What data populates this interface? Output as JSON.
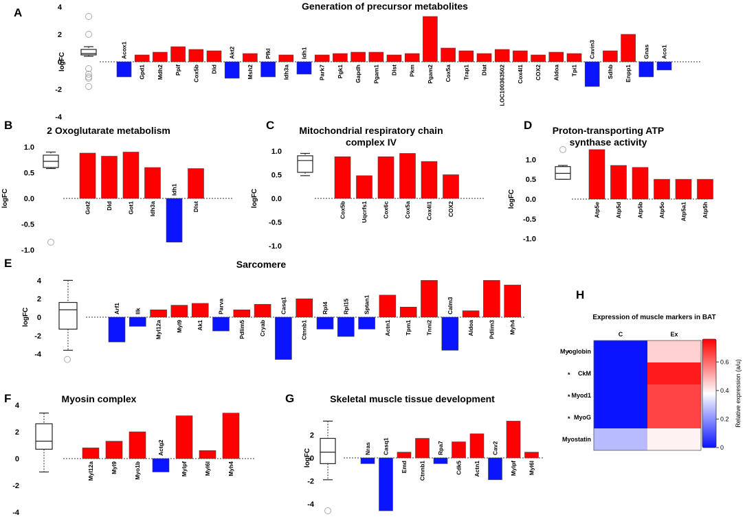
{
  "chart_data": [
    {
      "id": "A",
      "type": "bar",
      "letter": "A",
      "title": "Generation of precursor metabolites",
      "ylabel": "logFC",
      "ylim": [
        -4,
        4
      ],
      "yticks": [
        4,
        2,
        0,
        -2,
        -4
      ],
      "categories": [
        "Acox1",
        "Gpd1",
        "Mdh2",
        "Ppif",
        "Cox5b",
        "Dld",
        "Akt2",
        "Msh2",
        "Pfkl",
        "Idh3a",
        "Idh1",
        "Park7",
        "Pgk1",
        "Gapdh",
        "Pgam1",
        "Dlst",
        "Pkm",
        "Pgam2",
        "Cox5a",
        "Trap1",
        "Dlat",
        "LOC100363502",
        "Cox4l1",
        "COX2",
        "Aldoa",
        "Tpi1",
        "Cavin3",
        "Sdhb",
        "Enpp1",
        "Gnas",
        "Aco1"
      ],
      "values": [
        -1.1,
        0.5,
        0.7,
        1.1,
        0.9,
        0.8,
        -1.2,
        0.6,
        -1.1,
        0.5,
        -0.9,
        0.5,
        0.6,
        0.7,
        0.7,
        0.5,
        0.6,
        3.3,
        1.0,
        0.8,
        0.6,
        0.9,
        0.8,
        0.5,
        0.7,
        0.6,
        -1.8,
        0.8,
        2.0,
        -1.1,
        -0.6
      ],
      "box": {
        "min": 0.4,
        "q1": 0.5,
        "median": 0.6,
        "q3": 0.9,
        "max": 1.1,
        "outliers": [
          3.3,
          2.0,
          -0.5,
          -0.9,
          -1.1,
          -1.2,
          -1.8
        ]
      }
    },
    {
      "id": "B",
      "type": "bar",
      "letter": "B",
      "title": "2 Oxoglutarate metabolism",
      "ylabel": "logFC",
      "ylim": [
        -1,
        1
      ],
      "yticks": [
        "1.0",
        "0.5",
        "0.0",
        "-0.5",
        "-1.0"
      ],
      "categories": [
        "Got2",
        "Dld",
        "Got1",
        "Idh3a",
        "Idh1",
        "Dlst"
      ],
      "values": [
        0.88,
        0.82,
        0.9,
        0.6,
        -0.85,
        0.58
      ],
      "box": {
        "min": 0.58,
        "q1": 0.6,
        "median": 0.72,
        "q3": 0.84,
        "max": 0.9,
        "outliers": [
          -0.85
        ]
      }
    },
    {
      "id": "C",
      "type": "bar",
      "letter": "C",
      "title": "Mitochondrial respiratory chain complex IV",
      "title_lines": [
        "Mitochondrial respiratory chain",
        "complex IV"
      ],
      "ylabel": "logFC",
      "ylim": [
        -1,
        1
      ],
      "yticks": [
        "1.0",
        "0.5",
        "0.0",
        "-0.5",
        "-1.0"
      ],
      "categories": [
        "Cox5b",
        "Uqcrfs1",
        "Cox6c",
        "Cox5a",
        "Cox4l1",
        "COX2"
      ],
      "values": [
        0.88,
        0.48,
        0.88,
        0.95,
        0.78,
        0.5
      ],
      "box": {
        "min": 0.48,
        "q1": 0.55,
        "median": 0.8,
        "q3": 0.9,
        "max": 0.95,
        "outliers": []
      }
    },
    {
      "id": "D",
      "type": "bar",
      "letter": "D",
      "title": "Proton-transporting ATP synthase activity",
      "title_lines": [
        "Proton-transporting ATP",
        "synthase activity"
      ],
      "ylabel": "logFC",
      "ylim": [
        -1,
        1.3
      ],
      "yticks": [
        "1.0",
        "0.5",
        "0.0",
        "-0.5",
        "-1.0"
      ],
      "categories": [
        "Atp5e",
        "Atp5d",
        "Atp5b",
        "Atp5o",
        "Atp5a1",
        "Atp5h"
      ],
      "values": [
        1.25,
        0.85,
        0.8,
        0.5,
        0.5,
        0.5
      ],
      "box": {
        "min": 0.5,
        "q1": 0.5,
        "median": 0.65,
        "q3": 0.82,
        "max": 0.85,
        "outliers": [
          1.25
        ]
      }
    },
    {
      "id": "E",
      "type": "bar",
      "letter": "E",
      "title": "Sarcomere",
      "ylabel": "logFC",
      "ylim": [
        -5,
        5
      ],
      "yticks": [
        4,
        2,
        0,
        -2,
        -4
      ],
      "categories": [
        "Arf1",
        "Ilk",
        "Myl12a",
        "Myl9",
        "Ak1",
        "Parva",
        "Pdlim5",
        "Cryab",
        "Casq1",
        "Ctnnb1",
        "Rpl4",
        "Rpl15",
        "Sptan1",
        "Actn1",
        "Tpm1",
        "Tnni2",
        "Calm3",
        "Aldoa",
        "Pdlim3",
        "Myh4"
      ],
      "values": [
        -2.7,
        -1.0,
        0.8,
        1.3,
        1.5,
        -1.5,
        0.8,
        1.4,
        -4.6,
        2.0,
        -1.3,
        -2.1,
        -1.3,
        2.4,
        1.1,
        4.0,
        -3.6,
        0.7,
        4.0,
        3.5
      ],
      "box": {
        "min": -3.6,
        "q1": -1.3,
        "median": 0.8,
        "q3": 1.6,
        "max": 4.0,
        "outliers": [
          -4.6
        ]
      }
    },
    {
      "id": "F",
      "type": "bar",
      "letter": "F",
      "title": "Myosin complex",
      "ylabel": "",
      "ylim": [
        -4,
        4
      ],
      "yticks": [
        4,
        2,
        0,
        -2,
        -4
      ],
      "categories": [
        "Myl12a",
        "Myl9",
        "Myo1b",
        "Actg2",
        "Mylpf",
        "Myl6l",
        "Myh4"
      ],
      "values": [
        0.8,
        1.3,
        2.0,
        -1.0,
        3.2,
        0.6,
        3.4
      ],
      "box": {
        "min": -1.0,
        "q1": 0.7,
        "median": 1.3,
        "q3": 2.6,
        "max": 3.4,
        "outliers": []
      }
    },
    {
      "id": "G",
      "type": "bar",
      "letter": "G",
      "title": "Skeletal muscle tissue development",
      "ylabel": "logFC",
      "ylim": [
        -4,
        4
      ],
      "yticks": [
        2,
        0,
        -2,
        -4
      ],
      "categories": [
        "Nras",
        "Casq1",
        "Emd",
        "Ctnnb1",
        "Rpa7",
        "Cdk5",
        "Actn1",
        "Cav2",
        "Mylpf",
        "Myl6l"
      ],
      "values": [
        -0.5,
        -4.6,
        0.5,
        1.7,
        -0.5,
        1.4,
        2.1,
        -1.9,
        3.2,
        0.5
      ],
      "box": {
        "min": -1.9,
        "q1": -0.5,
        "median": 0.5,
        "q3": 1.7,
        "max": 3.2,
        "outliers": [
          -4.6
        ]
      }
    },
    {
      "id": "H",
      "type": "heatmap",
      "letter": "H",
      "title": "Expression of muscle markers in BAT",
      "columns": [
        "C",
        "Ex"
      ],
      "rows": [
        {
          "label": "Myoglobin",
          "star": "*",
          "values": [
            0.0,
            0.45
          ]
        },
        {
          "label": "CkM",
          "star": "*",
          "values": [
            0.0,
            0.72
          ]
        },
        {
          "label": "Myod1",
          "star": "*",
          "values": [
            0.0,
            0.66
          ]
        },
        {
          "label": "MyoG",
          "star": "*",
          "values": [
            0.0,
            0.66
          ]
        },
        {
          "label": "Myostatin",
          "star": "",
          "values": [
            0.27,
            0.4
          ]
        }
      ],
      "colorbar": {
        "label": "Relative expression (a/u)",
        "ticks": [
          "0.6",
          "0.4",
          "0.2",
          "0"
        ],
        "tick_values": [
          0.6,
          0.4,
          0.2,
          0.0
        ],
        "range": [
          0,
          0.76
        ],
        "colors": [
          "#0a14ff",
          "#ffffff",
          "#ff0000"
        ]
      }
    }
  ]
}
